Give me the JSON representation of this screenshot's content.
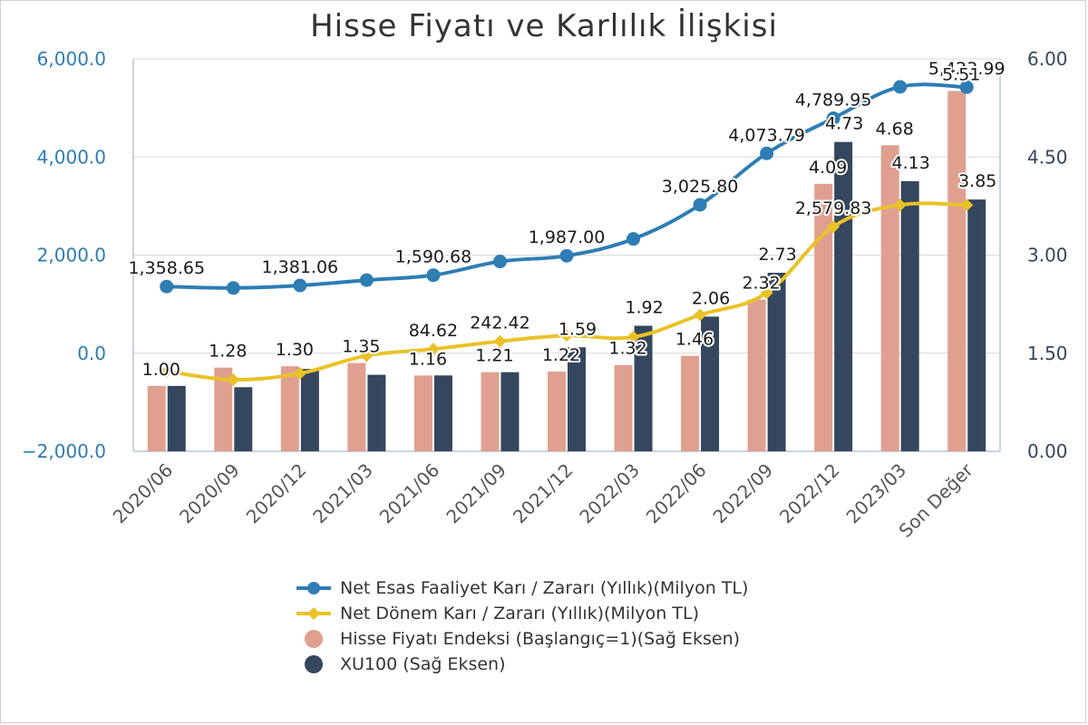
{
  "chart_data": {
    "type": "bar",
    "title": "Hisse Fiyatı ve Karlılık İlişkisi",
    "categories": [
      "2020/06",
      "2020/09",
      "2020/12",
      "2021/03",
      "2021/06",
      "2021/09",
      "2021/12",
      "2022/03",
      "2022/06",
      "2022/09",
      "2022/12",
      "2023/03",
      "Son Değer"
    ],
    "left_axis": {
      "min": -2000,
      "max": 6000,
      "ticks": [
        "−2,000.0",
        "0.0",
        "2,000.0",
        "4,000.0",
        "6,000.0"
      ],
      "tick_values": [
        -2000,
        0,
        2000,
        4000,
        6000
      ]
    },
    "right_axis": {
      "min": 0,
      "max": 6,
      "ticks": [
        "0.00",
        "1.50",
        "3.00",
        "4.50",
        "6.00"
      ],
      "tick_values": [
        0,
        1.5,
        3,
        4.5,
        6
      ]
    },
    "grid": true,
    "legend_position": "bottom",
    "colors": {
      "blue": "#2e7db4",
      "yellow": "#eac227",
      "salmon": "#e0a090",
      "navy": "#34475e",
      "axis_label": "#2e7db4"
    },
    "series": [
      {
        "name": "Net Esas Faaliyet Karı / Zararı (Yıllık)(Milyon TL)",
        "kind": "line",
        "axis": "left",
        "marker": "circle",
        "values": [
          1358.65,
          1330,
          1381.06,
          1490,
          1590.68,
          1870,
          1987.0,
          2330,
          3025.8,
          4073.79,
          4789.95,
          5430,
          5423.99
        ],
        "labels": [
          "1,358.65",
          "",
          "1,381.06",
          "",
          "1,590.68",
          "",
          "1,987.00",
          "",
          "3,025.80",
          "4,073.79",
          "4,789.95",
          "",
          "5,423.99"
        ]
      },
      {
        "name": "Net Dönem Karı / Zararı (Yıllık)(Milyon TL)",
        "kind": "line",
        "axis": "left",
        "marker": "diamond",
        "values": [
          -370,
          -540,
          -410,
          -50,
          84.62,
          242.42,
          360,
          330,
          780,
          1230,
          2579.83,
          3020,
          3020
        ],
        "labels": [
          "",
          "",
          "",
          "",
          "84.62",
          "242.42",
          "",
          "",
          "",
          "",
          "2,579.83",
          "",
          ""
        ]
      },
      {
        "name": "Hisse Fiyatı Endeksi (Başlangıç=1)(Sağ Eksen)",
        "kind": "bar",
        "axis": "right",
        "values": [
          1.0,
          1.28,
          1.3,
          1.35,
          1.16,
          1.21,
          1.22,
          1.32,
          1.46,
          2.32,
          4.09,
          4.68,
          5.51
        ],
        "labels": [
          "1.00",
          "1.28",
          "1.30",
          "1.35",
          "1.16",
          "1.21",
          "1.22",
          "1.32",
          "1.46",
          "2.32",
          "4.09",
          "4.68",
          "5.51"
        ]
      },
      {
        "name": "XU100 (Sağ Eksen)",
        "kind": "bar",
        "axis": "right",
        "values": [
          1.0,
          0.98,
          1.26,
          1.17,
          1.16,
          1.21,
          1.59,
          1.92,
          2.06,
          2.73,
          4.73,
          4.13,
          3.85
        ],
        "labels": [
          "",
          "",
          "",
          "",
          "",
          "",
          "1.59",
          "1.92",
          "2.06",
          "2.73",
          "4.73",
          "4.13",
          "3.85"
        ]
      }
    ]
  }
}
